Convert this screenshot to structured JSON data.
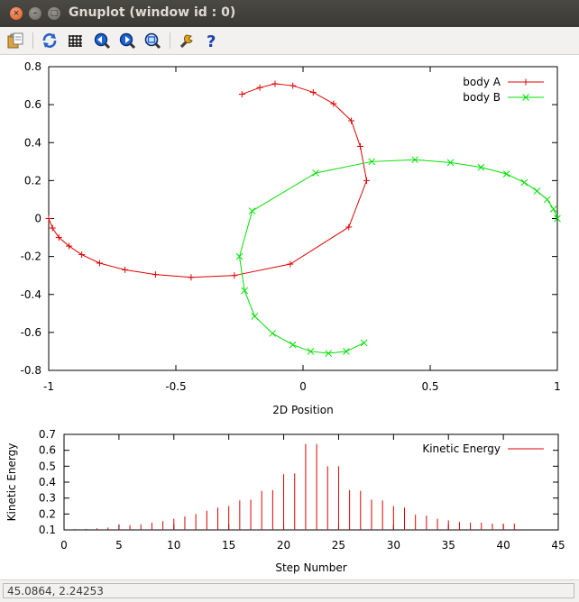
{
  "window": {
    "title": "Gnuplot (window id : 0)",
    "close_glyph": "×",
    "min_glyph": "–",
    "max_glyph": "□"
  },
  "toolbar": {
    "buttons": [
      {
        "name": "copy-to-clipboard",
        "icon": "clipboard-icon"
      },
      {
        "name": "replot",
        "icon": "refresh-icon"
      },
      {
        "name": "toggle-grid",
        "icon": "grid-icon"
      },
      {
        "name": "previous-zoom",
        "icon": "zoom-back-icon"
      },
      {
        "name": "next-zoom",
        "icon": "zoom-forward-icon"
      },
      {
        "name": "autoscale",
        "icon": "zoom-fit-icon"
      },
      {
        "name": "configure",
        "icon": "wrench-icon"
      },
      {
        "name": "help",
        "icon": "help-icon"
      }
    ]
  },
  "status": {
    "coords": "45.0864,  2.24253"
  },
  "chart_data": [
    {
      "type": "line",
      "xlabel": "2D Position",
      "ylabel": "",
      "xlim": [
        -1,
        1
      ],
      "ylim": [
        -0.8,
        0.8
      ],
      "xticks": [
        "-1",
        "-0.5",
        "0",
        "0.5",
        "1"
      ],
      "yticks": [
        "0.8",
        "0.6",
        "0.4",
        "0.2",
        "0",
        "-0.2",
        "-0.4",
        "-0.6",
        "-0.8"
      ],
      "legend_position": "top-right",
      "grid": false,
      "series": [
        {
          "name": "body A",
          "color": "#e00000",
          "marker": "+",
          "x": [
            -1.0,
            -0.985,
            -0.96,
            -0.92,
            -0.87,
            -0.8,
            -0.7,
            -0.58,
            -0.44,
            -0.27,
            -0.05,
            0.18,
            0.25,
            0.225,
            0.19,
            0.12,
            0.04,
            -0.04,
            -0.11,
            -0.17,
            -0.24
          ],
          "y": [
            0.0,
            -0.05,
            -0.1,
            -0.145,
            -0.19,
            -0.235,
            -0.27,
            -0.295,
            -0.31,
            -0.3,
            -0.24,
            -0.045,
            0.2,
            0.38,
            0.515,
            0.605,
            0.665,
            0.7,
            0.71,
            0.69,
            0.655
          ]
        },
        {
          "name": "body B",
          "color": "#00e000",
          "marker": "x",
          "x": [
            1.0,
            0.985,
            0.96,
            0.92,
            0.87,
            0.8,
            0.7,
            0.58,
            0.44,
            0.27,
            0.05,
            -0.2,
            -0.25,
            -0.23,
            -0.19,
            -0.12,
            -0.04,
            0.03,
            0.1,
            0.17,
            0.24
          ],
          "y": [
            0.0,
            0.05,
            0.1,
            0.145,
            0.19,
            0.235,
            0.27,
            0.295,
            0.31,
            0.3,
            0.24,
            0.04,
            -0.2,
            -0.38,
            -0.515,
            -0.605,
            -0.665,
            -0.7,
            -0.71,
            -0.7,
            -0.655
          ]
        }
      ]
    },
    {
      "type": "bar",
      "xlabel": "Step Number",
      "ylabel": "Kinetic Energy",
      "xlim": [
        0,
        45
      ],
      "ylim": [
        0.1,
        0.7
      ],
      "xticks": [
        "0",
        "5",
        "10",
        "15",
        "20",
        "25",
        "30",
        "35",
        "40",
        "45"
      ],
      "yticks": [
        "0.7",
        "0.6",
        "0.5",
        "0.4",
        "0.3",
        "0.2",
        "0.1"
      ],
      "legend_position": "top-right",
      "grid": false,
      "series": [
        {
          "name": "Kinetic Energy",
          "color": "#e00000",
          "x": [
            1,
            2,
            3,
            4,
            5,
            6,
            7,
            8,
            9,
            10,
            11,
            12,
            13,
            14,
            15,
            16,
            17,
            18,
            19,
            20,
            21,
            22,
            23,
            24,
            25,
            26,
            27,
            28,
            29,
            30,
            31,
            32,
            33,
            34,
            35,
            36,
            37,
            38,
            39,
            40,
            41
          ],
          "values": [
            0.1,
            0.105,
            0.11,
            0.115,
            0.125,
            0.13,
            0.135,
            0.145,
            0.155,
            0.17,
            0.185,
            0.2,
            0.22,
            0.24,
            0.25,
            0.285,
            0.29,
            0.345,
            0.35,
            0.45,
            0.455,
            0.64,
            0.64,
            0.5,
            0.5,
            0.35,
            0.345,
            0.29,
            0.285,
            0.25,
            0.24,
            0.195,
            0.19,
            0.17,
            0.16,
            0.15,
            0.145,
            0.145,
            0.14,
            0.14,
            0.14
          ]
        }
      ]
    }
  ]
}
